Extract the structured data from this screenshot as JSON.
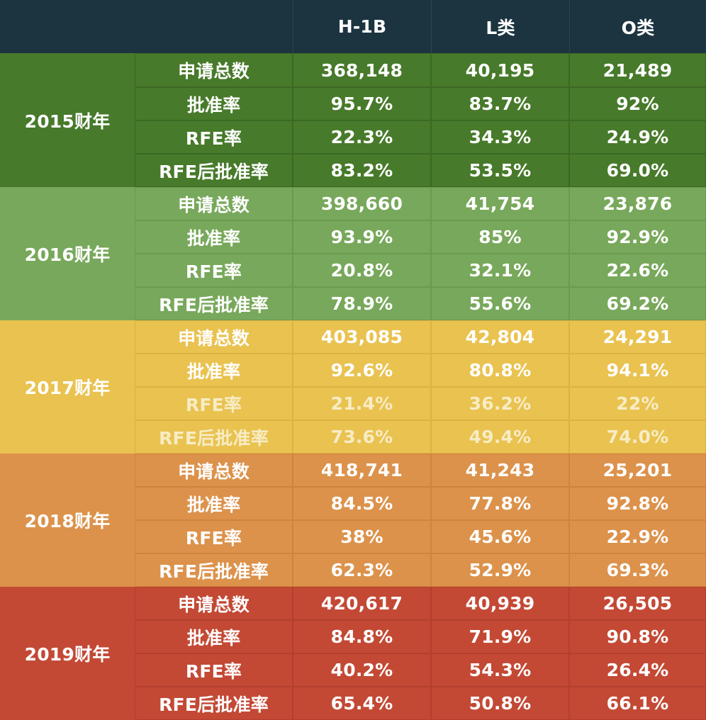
{
  "header": {
    "year_corner": "",
    "metric_corner": "",
    "columns": [
      "H-1B",
      "L类",
      "O类"
    ]
  },
  "groups": [
    {
      "year": "2015财年",
      "rows": [
        {
          "metric": "申请总数",
          "values": [
            "368,148",
            "40,195",
            "21,489"
          ]
        },
        {
          "metric": "批准率",
          "values": [
            "95.7%",
            "83.7%",
            "92%"
          ]
        },
        {
          "metric": "RFE率",
          "values": [
            "22.3%",
            "34.3%",
            "24.9%"
          ]
        },
        {
          "metric": "RFE后批准率",
          "values": [
            "83.2%",
            "53.5%",
            "69.0%"
          ]
        }
      ]
    },
    {
      "year": "2016财年",
      "rows": [
        {
          "metric": "申请总数",
          "values": [
            "398,660",
            "41,754",
            "23,876"
          ]
        },
        {
          "metric": "批准率",
          "values": [
            "93.9%",
            "85%",
            "92.9%"
          ]
        },
        {
          "metric": "RFE率",
          "values": [
            "20.8%",
            "32.1%",
            "22.6%"
          ]
        },
        {
          "metric": "RFE后批准率",
          "values": [
            "78.9%",
            "55.6%",
            "69.2%"
          ]
        }
      ]
    },
    {
      "year": "2017财年",
      "rows": [
        {
          "metric": "申请总数",
          "values": [
            "403,085",
            "42,804",
            "24,291"
          ]
        },
        {
          "metric": "批准率",
          "values": [
            "92.6%",
            "80.8%",
            "94.1%"
          ]
        },
        {
          "metric": "RFE率",
          "values": [
            "21.4%",
            "36.2%",
            "22%"
          ]
        },
        {
          "metric": "RFE后批准率",
          "values": [
            "73.6%",
            "49.4%",
            "74.0%"
          ]
        }
      ]
    },
    {
      "year": "2018财年",
      "rows": [
        {
          "metric": "申请总数",
          "values": [
            "418,741",
            "41,243",
            "25,201"
          ]
        },
        {
          "metric": "批准率",
          "values": [
            "84.5%",
            "77.8%",
            "92.8%"
          ]
        },
        {
          "metric": "RFE率",
          "values": [
            "38%",
            "45.6%",
            "22.9%"
          ]
        },
        {
          "metric": "RFE后批准率",
          "values": [
            "62.3%",
            "52.9%",
            "69.3%"
          ]
        }
      ]
    },
    {
      "year": "2019财年",
      "rows": [
        {
          "metric": "申请总数",
          "values": [
            "420,617",
            "40,939",
            "26,505"
          ]
        },
        {
          "metric": "批准率",
          "values": [
            "84.8%",
            "71.9%",
            "90.8%"
          ]
        },
        {
          "metric": "RFE率",
          "values": [
            "40.2%",
            "54.3%",
            "26.4%"
          ]
        },
        {
          "metric": "RFE后批准率",
          "values": [
            "65.4%",
            "50.8%",
            "66.1%"
          ]
        }
      ]
    }
  ],
  "colors": {
    "header": "#1c3440",
    "2015": "#477a2a",
    "2016": "#78a85b",
    "2017": "#e9c250",
    "2018": "#dc924b",
    "2019": "#c34935",
    "text": "#ffffff"
  }
}
